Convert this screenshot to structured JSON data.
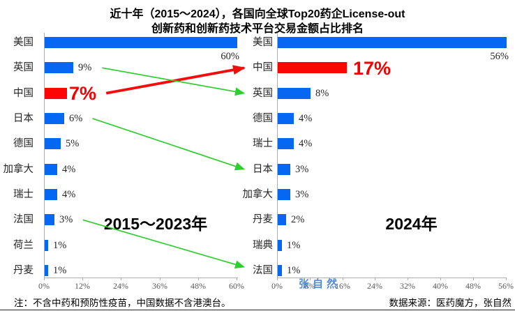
{
  "title": {
    "line1": "近十年（2015～2024），各国向全球Top20药企License-out",
    "line2": "创新药和创新药技术平台交易金额占比排名"
  },
  "colors": {
    "bar_blue": "#0567F2",
    "bar_red": "#FB0505",
    "value_red": "#F40000",
    "arrow_green": "#2ECE2E",
    "arrow_red": "#F20D0D",
    "axis_gray": "#ADADAD",
    "watermark_blue": "#3F7FD6"
  },
  "chart_data": [
    {
      "type": "bar",
      "orientation": "horizontal",
      "period_label": "2015～2023年",
      "categories": [
        "美国",
        "英国",
        "中国",
        "日本",
        "德国",
        "加拿大",
        "瑞士",
        "法国",
        "荷兰",
        "丹麦"
      ],
      "values": [
        60,
        9,
        7,
        6,
        5,
        4,
        4,
        3,
        1,
        1
      ],
      "value_labels": [
        "60%",
        "9%",
        "7%",
        "6%",
        "5%",
        "4%",
        "4%",
        "3%",
        "1%",
        "1%"
      ],
      "highlight_category": "中国",
      "xlim": [
        0,
        60
      ],
      "tick_values": [
        0,
        12,
        24,
        36,
        48,
        60
      ],
      "tick_labels": [
        "0%",
        "12%",
        "24%",
        "36%",
        "48%",
        "60%"
      ],
      "grid": "off",
      "legend": "none"
    },
    {
      "type": "bar",
      "orientation": "horizontal",
      "period_label": "2024年",
      "categories": [
        "美国",
        "中国",
        "英国",
        "德国",
        "瑞士",
        "日本",
        "加拿大",
        "丹麦",
        "瑞典",
        "法国"
      ],
      "values": [
        56,
        17,
        8,
        4,
        4,
        3,
        3,
        2,
        1,
        1
      ],
      "value_labels": [
        "56%",
        "17%",
        "8%",
        "4%",
        "4%",
        "3%",
        "3%",
        "2%",
        "1%",
        "1%"
      ],
      "highlight_category": "中国",
      "xlim": [
        0,
        56
      ],
      "tick_values": [
        0,
        8,
        16,
        24,
        32,
        40,
        48,
        56
      ],
      "tick_labels": [
        "0%",
        "8%",
        "16%",
        "24%",
        "32%",
        "40%",
        "48%",
        "56%"
      ],
      "grid": "off",
      "legend": "none"
    }
  ],
  "annotations": {
    "arrows": [
      {
        "from_chart": 0,
        "category_from": "中国",
        "to_chart": 1,
        "category_to": "中国",
        "color_key": "arrow_red",
        "style": "thick"
      },
      {
        "from_chart": 0,
        "category_from": "英国",
        "to_chart": 1,
        "category_to": "英国",
        "color_key": "arrow_green",
        "style": "thin"
      },
      {
        "from_chart": 0,
        "category_from": "日本",
        "to_chart": 1,
        "category_to": "日本",
        "color_key": "arrow_green",
        "style": "thin"
      },
      {
        "from_chart": 0,
        "category_from": "法国",
        "to_chart": 1,
        "category_to": "法国",
        "color_key": "arrow_green",
        "style": "thin"
      }
    ]
  },
  "footer": {
    "note": "注：不含中药和预防性疫苗，中国数据不含港澳台。",
    "source": "数据来源：医药魔方，张自然",
    "watermark": "张自然"
  }
}
